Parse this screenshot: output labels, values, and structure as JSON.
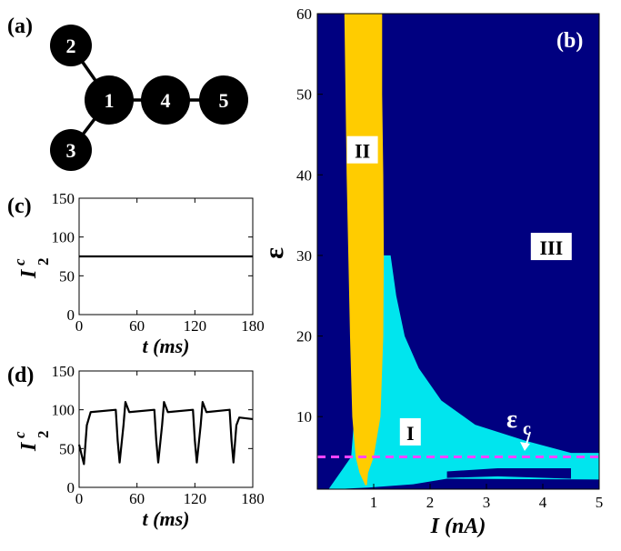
{
  "panel_labels": {
    "a": "(a)",
    "b": "(b)",
    "c": "(c)",
    "d": "(d)"
  },
  "network": {
    "nodes": [
      {
        "id": "1",
        "label": "1"
      },
      {
        "id": "2",
        "label": "2"
      },
      {
        "id": "3",
        "label": "3"
      },
      {
        "id": "4",
        "label": "4"
      },
      {
        "id": "5",
        "label": "5"
      }
    ],
    "edges": [
      [
        "1",
        "2"
      ],
      [
        "1",
        "3"
      ],
      [
        "1",
        "4"
      ],
      [
        "4",
        "5"
      ]
    ],
    "node_color": "#000000",
    "label_color": "#ffffff"
  },
  "chart_data": [
    {
      "id": "c",
      "type": "line",
      "x": [
        0,
        180
      ],
      "y": [
        75,
        75
      ],
      "xlabel_var": "t",
      "xlabel_unit": "(ms)",
      "ylabel_base": "I",
      "ylabel_sup": "c",
      "ylabel_sub": "2",
      "xlim": [
        0,
        180
      ],
      "ylim": [
        0,
        150
      ],
      "xticks": [
        0,
        60,
        120,
        180
      ],
      "yticks": [
        0,
        50,
        100,
        150
      ],
      "line_color": "#000000"
    },
    {
      "id": "d",
      "type": "line",
      "x": [
        0,
        5,
        8,
        12,
        38,
        40,
        42,
        46,
        48,
        52,
        78,
        80,
        82,
        86,
        88,
        92,
        118,
        120,
        122,
        126,
        128,
        132,
        156,
        158,
        160,
        163,
        166,
        180
      ],
      "y": [
        55,
        30,
        80,
        97,
        100,
        60,
        32,
        80,
        110,
        97,
        100,
        60,
        32,
        80,
        110,
        97,
        100,
        60,
        32,
        80,
        110,
        97,
        100,
        60,
        32,
        80,
        90,
        88
      ],
      "xlabel_var": "t",
      "xlabel_unit": "(ms)",
      "ylabel_base": "I",
      "ylabel_sup": "c",
      "ylabel_sub": "2",
      "xlim": [
        0,
        180
      ],
      "ylim": [
        0,
        150
      ],
      "xticks": [
        0,
        60,
        120,
        180
      ],
      "yticks": [
        0,
        50,
        100,
        150
      ],
      "line_color": "#000000"
    },
    {
      "id": "b",
      "type": "heatmap",
      "xlabel_var": "I",
      "xlabel_unit": "(nA)",
      "ylabel": "ε",
      "xlim": [
        0,
        5
      ],
      "ylim": [
        1,
        60
      ],
      "xticks": [
        1,
        2,
        3,
        4,
        5
      ],
      "yticks": [
        10,
        20,
        30,
        40,
        50,
        60
      ],
      "regions": [
        {
          "label": "I",
          "color": "#00e5ee",
          "label_at": [
            1.65,
            8
          ]
        },
        {
          "label": "II",
          "color": "#ffcc00",
          "label_at": [
            0.8,
            43
          ]
        },
        {
          "label": "III",
          "color": "#000080",
          "label_at": [
            4.15,
            31
          ]
        }
      ],
      "region_II_boundary": {
        "eps": [
          60,
          50,
          40,
          30,
          20,
          10,
          5,
          3,
          1.5
        ],
        "left_I": [
          0.48,
          0.5,
          0.52,
          0.55,
          0.58,
          0.62,
          0.68,
          0.75,
          0.85
        ],
        "right_I": [
          1.15,
          1.15,
          1.17,
          1.18,
          1.17,
          1.12,
          1.0,
          0.9,
          0.88
        ]
      },
      "region_I_boundary": {
        "eps": [
          5.5,
          7,
          9,
          12,
          16,
          20,
          25,
          30
        ],
        "right_I": [
          4.5,
          3.7,
          2.8,
          2.2,
          1.8,
          1.55,
          1.4,
          1.3
        ]
      },
      "critical_line": {
        "label_base": "ε",
        "label_sub": "c",
        "eps": 5,
        "color": "#ff44ff"
      }
    }
  ]
}
